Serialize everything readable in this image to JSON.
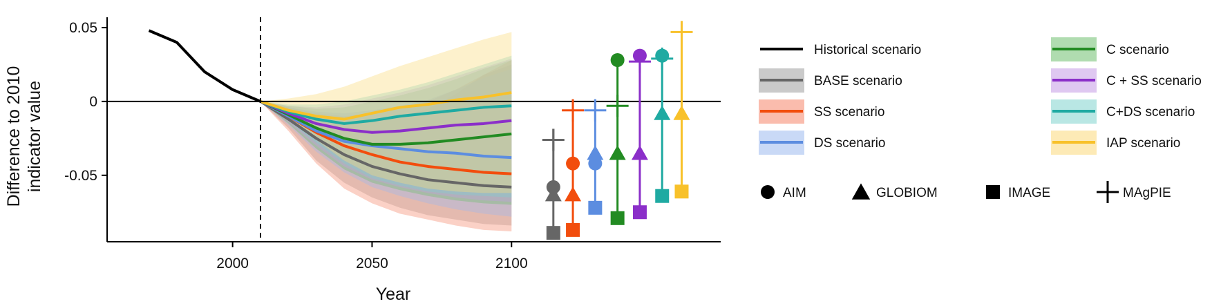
{
  "chart_data": {
    "type": "line",
    "title": "",
    "xlabel": "Year",
    "ylabel_lines": [
      "Difference to 2010",
      "indicator value"
    ],
    "xlim": [
      1955,
      2175
    ],
    "ylim": [
      -0.095,
      0.057
    ],
    "x_ticks": [
      2000,
      2050,
      2100
    ],
    "x_tick_labels": [
      "2000",
      "2050",
      "2100"
    ],
    "y_ticks": [
      0.05,
      0,
      -0.05
    ],
    "y_tick_labels": [
      "0.05",
      "0",
      "-0.05"
    ],
    "zero_line": 0,
    "divider_year": 2010,
    "historical": {
      "name": "Historical scenario",
      "color": "#000000",
      "x": [
        1970,
        1980,
        1990,
        2000,
        2010
      ],
      "y": [
        0.048,
        0.04,
        0.02,
        0.008,
        0.0
      ]
    },
    "years": [
      2010,
      2020,
      2030,
      2040,
      2050,
      2060,
      2070,
      2080,
      2090,
      2100
    ],
    "series": [
      {
        "name": "BASE scenario",
        "color": "#666666",
        "fill": "#9e9e9e",
        "values": [
          0,
          -0.012,
          -0.025,
          -0.036,
          -0.044,
          -0.049,
          -0.053,
          -0.055,
          -0.057,
          -0.058
        ],
        "lower": [
          0,
          -0.018,
          -0.04,
          -0.055,
          -0.065,
          -0.072,
          -0.077,
          -0.08,
          -0.083,
          -0.084
        ],
        "upper": [
          0,
          -0.005,
          -0.01,
          -0.014,
          -0.013,
          -0.01,
          -0.005,
          0.005,
          0.018,
          0.025
        ]
      },
      {
        "name": "SS scenario",
        "color": "#f24d0d",
        "fill": "#f5856a",
        "values": [
          0,
          -0.01,
          -0.021,
          -0.03,
          -0.036,
          -0.041,
          -0.044,
          -0.046,
          -0.048,
          -0.049
        ],
        "lower": [
          0,
          -0.02,
          -0.042,
          -0.059,
          -0.069,
          -0.076,
          -0.08,
          -0.084,
          -0.087,
          -0.088
        ],
        "upper": [
          0,
          -0.004,
          -0.008,
          -0.01,
          -0.008,
          -0.005,
          0.0,
          0.008,
          0.018,
          0.028
        ]
      },
      {
        "name": "DS scenario",
        "color": "#5c8de0",
        "fill": "#9db9ef",
        "values": [
          0,
          -0.01,
          -0.02,
          -0.027,
          -0.03,
          -0.032,
          -0.034,
          -0.035,
          -0.037,
          -0.038
        ],
        "lower": [
          0,
          -0.016,
          -0.034,
          -0.048,
          -0.058,
          -0.064,
          -0.069,
          -0.073,
          -0.076,
          -0.078
        ],
        "upper": [
          0,
          -0.004,
          -0.007,
          -0.008,
          -0.006,
          -0.003,
          0.001,
          0.008,
          0.016,
          0.022
        ]
      },
      {
        "name": "C scenario",
        "color": "#228b22",
        "fill": "#6fbf6f",
        "values": [
          0,
          -0.009,
          -0.018,
          -0.025,
          -0.029,
          -0.029,
          -0.028,
          -0.026,
          -0.024,
          -0.022
        ],
        "lower": [
          0,
          -0.015,
          -0.032,
          -0.046,
          -0.055,
          -0.06,
          -0.064,
          -0.067,
          -0.069,
          -0.07
        ],
        "upper": [
          0,
          -0.003,
          -0.005,
          -0.004,
          0.0,
          0.004,
          0.009,
          0.015,
          0.022,
          0.028
        ]
      },
      {
        "name": "C + SS scenario",
        "color": "#8b2fc9",
        "fill": "#c59be5",
        "values": [
          0,
          -0.008,
          -0.015,
          -0.019,
          -0.021,
          -0.02,
          -0.018,
          -0.016,
          -0.015,
          -0.013
        ],
        "lower": [
          0,
          -0.014,
          -0.03,
          -0.044,
          -0.053,
          -0.058,
          -0.062,
          -0.065,
          -0.067,
          -0.068
        ],
        "upper": [
          0,
          -0.003,
          -0.004,
          -0.002,
          0.002,
          0.006,
          0.011,
          0.017,
          0.023,
          0.029
        ]
      },
      {
        "name": "C+DS scenario",
        "color": "#1faaa2",
        "fill": "#7fd3cd",
        "values": [
          0,
          -0.007,
          -0.012,
          -0.015,
          -0.013,
          -0.01,
          -0.008,
          -0.006,
          -0.004,
          -0.003
        ],
        "lower": [
          0,
          -0.013,
          -0.028,
          -0.042,
          -0.052,
          -0.057,
          -0.061,
          -0.063,
          -0.064,
          -0.065
        ],
        "upper": [
          0,
          -0.002,
          -0.002,
          0.0,
          0.004,
          0.008,
          0.013,
          0.019,
          0.025,
          0.031
        ]
      },
      {
        "name": "IAP scenario",
        "color": "#f8c12a",
        "fill": "#fbd97a",
        "values": [
          0,
          -0.006,
          -0.01,
          -0.012,
          -0.008,
          -0.004,
          -0.002,
          0.001,
          0.003,
          0.006
        ],
        "lower": [
          0,
          -0.012,
          -0.026,
          -0.04,
          -0.05,
          -0.055,
          -0.059,
          -0.061,
          -0.062,
          -0.062
        ],
        "upper": [
          0,
          0.002,
          0.005,
          0.01,
          0.017,
          0.024,
          0.03,
          0.036,
          0.042,
          0.047
        ]
      }
    ],
    "model_markers": {
      "x": [
        2115,
        2122,
        2130,
        2138,
        2146,
        2154,
        2161
      ],
      "models": [
        {
          "name": "AIM",
          "shape": "circle",
          "values": [
            -0.058,
            -0.042,
            -0.042,
            0.028,
            0.031,
            0.031,
            null
          ]
        },
        {
          "name": "GLOBIOM",
          "shape": "triangle",
          "values": [
            -0.063,
            -0.063,
            -0.035,
            -0.035,
            -0.035,
            -0.008,
            -0.008
          ]
        },
        {
          "name": "IMAGE",
          "shape": "square",
          "values": [
            -0.089,
            -0.087,
            -0.072,
            -0.079,
            -0.075,
            -0.064,
            -0.061
          ]
        },
        {
          "name": "MAgPIE",
          "shape": "plus",
          "values": [
            -0.026,
            -0.006,
            -0.006,
            -0.003,
            0.027,
            0.029,
            0.047
          ]
        }
      ]
    },
    "legend": {
      "placement": "right",
      "marker_columns": 4
    }
  }
}
